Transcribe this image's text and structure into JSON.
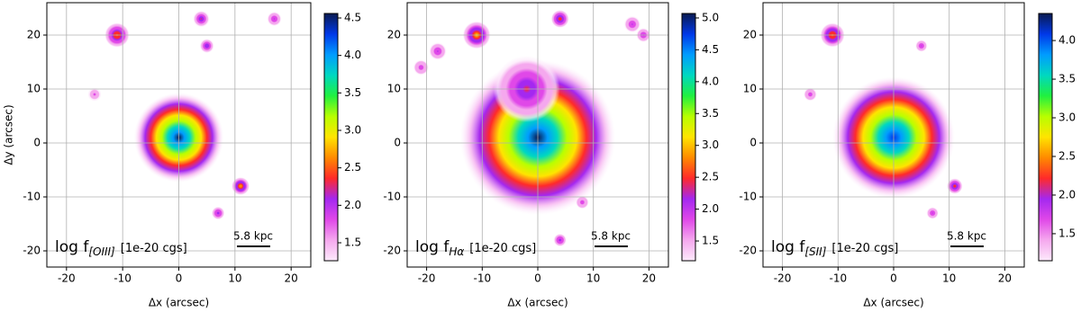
{
  "chart_data": [
    {
      "type": "image",
      "xlabel": "Δx (arcsec)",
      "ylabel": "Δy (arcsec)",
      "xlim": [
        -23.5,
        23.5
      ],
      "ylim": [
        -23,
        26
      ],
      "xticks": [
        -20,
        -10,
        0,
        10,
        20
      ],
      "yticks": [
        -20,
        -10,
        0,
        10,
        20
      ],
      "grid": true,
      "annotation": {
        "prefix": "log f",
        "subscript": "[OIII]",
        "suffix": "[1e-20 cgs]"
      },
      "scalebar": "5.8 kpc",
      "clim": [
        1.26,
        4.56
      ],
      "cticks": [
        1.5,
        {
          "value": 2.0,
          "label": "2.0"
        },
        2.5,
        {
          "value": 3.0,
          "label": "3.0"
        },
        3.5,
        {
          "value": 4.0,
          "label": "4.0"
        },
        4.5
      ],
      "colormap": [
        "#fdeafb",
        "#f5a8ee",
        "#e048e8",
        "#a428f0",
        "#ff2a2a",
        "#ff8a00",
        "#ffe400",
        "#b8ff00",
        "#20f040",
        "#00d8c0",
        "#009cff",
        "#0038e8",
        "#0a1a50"
      ],
      "sources": [
        {
          "x": 0,
          "y": 1,
          "z": 4.5,
          "r": 8
        },
        {
          "x": -11,
          "y": 20,
          "z": 2.6,
          "r": 2.2
        },
        {
          "x": 4,
          "y": 23,
          "z": 2.3,
          "r": 1.5
        },
        {
          "x": 5,
          "y": 18,
          "z": 2.2,
          "r": 1.3
        },
        {
          "x": 11,
          "y": -8,
          "z": 2.7,
          "r": 1.6
        },
        {
          "x": 7,
          "y": -13,
          "z": 2.1,
          "r": 1.2
        },
        {
          "x": 17,
          "y": 23,
          "z": 2.0,
          "r": 1.3
        },
        {
          "x": -15,
          "y": 9,
          "z": 1.8,
          "r": 1.2
        }
      ]
    },
    {
      "type": "image",
      "xlabel": "Δx (arcsec)",
      "xlim": [
        -23.5,
        23.5
      ],
      "ylim": [
        -23,
        26
      ],
      "xticks": [
        -20,
        -10,
        0,
        10,
        20
      ],
      "yticks": [
        -20,
        -10,
        0,
        10,
        20
      ],
      "grid": true,
      "annotation": {
        "prefix": "log f",
        "subscript": "Hα",
        "suffix": "[1e-20 cgs]"
      },
      "scalebar": "5.8 kpc",
      "clim": [
        1.19,
        5.07
      ],
      "cticks": [
        1.5,
        {
          "value": 2.0,
          "label": "2.0"
        },
        2.5,
        {
          "value": 3.0,
          "label": "3.0"
        },
        3.5,
        {
          "value": 4.0,
          "label": "4.0"
        },
        4.5,
        {
          "value": 5.0,
          "label": "5.0"
        }
      ],
      "colormap": [
        "#fdeafb",
        "#f5a8ee",
        "#e048e8",
        "#a428f0",
        "#ff2a2a",
        "#ff8a00",
        "#ffe400",
        "#b8ff00",
        "#20f040",
        "#00d8c0",
        "#009cff",
        "#0038e8",
        "#0a1a50"
      ],
      "sources": [
        {
          "x": 0,
          "y": 1,
          "z": 5.0,
          "r": 14
        },
        {
          "x": -2,
          "y": 10,
          "z": 2.4,
          "r": 6
        },
        {
          "x": -11,
          "y": 20,
          "z": 3.0,
          "r": 2.5
        },
        {
          "x": 4,
          "y": 23,
          "z": 2.5,
          "r": 1.6
        },
        {
          "x": -18,
          "y": 17,
          "z": 2.1,
          "r": 1.6
        },
        {
          "x": -21,
          "y": 14,
          "z": 1.9,
          "r": 1.4
        },
        {
          "x": 17,
          "y": 22,
          "z": 2.1,
          "r": 1.5
        },
        {
          "x": 19,
          "y": 20,
          "z": 2.0,
          "r": 1.3
        },
        {
          "x": 4,
          "y": -18,
          "z": 2.2,
          "r": 1.2
        },
        {
          "x": 8,
          "y": -11,
          "z": 1.9,
          "r": 1.2
        }
      ]
    },
    {
      "type": "image",
      "xlabel": "Δx (arcsec)",
      "xlim": [
        -23.5,
        23.5
      ],
      "ylim": [
        -23,
        26
      ],
      "xticks": [
        -20,
        -10,
        0,
        10,
        20
      ],
      "yticks": [
        -20,
        -10,
        0,
        10,
        20
      ],
      "grid": true,
      "annotation": {
        "prefix": "log f",
        "subscript": "[SII]",
        "suffix": "[1e-20 cgs]"
      },
      "scalebar": "5.8 kpc",
      "clim": [
        1.15,
        4.35
      ],
      "cticks": [
        1.5,
        {
          "value": 2.0,
          "label": "2.0"
        },
        2.5,
        {
          "value": 3.0,
          "label": "3.0"
        },
        3.5,
        {
          "value": 4.0,
          "label": "4.0"
        }
      ],
      "colormap": [
        "#fdeafb",
        "#f5a8ee",
        "#e048e8",
        "#a428f0",
        "#ff2a2a",
        "#ff8a00",
        "#ffe400",
        "#b8ff00",
        "#20f040",
        "#00d8c0",
        "#009cff",
        "#0038e8",
        "#0a1a50"
      ],
      "sources": [
        {
          "x": 0,
          "y": 1,
          "z": 4.2,
          "r": 11
        },
        {
          "x": -11,
          "y": 20,
          "z": 2.5,
          "r": 2.2
        },
        {
          "x": 11,
          "y": -8,
          "z": 2.3,
          "r": 1.4
        },
        {
          "x": 7,
          "y": -13,
          "z": 1.9,
          "r": 1.1
        },
        {
          "x": 5,
          "y": 18,
          "z": 1.9,
          "r": 1.1
        },
        {
          "x": -15,
          "y": 9,
          "z": 1.7,
          "r": 1.2
        }
      ]
    }
  ]
}
